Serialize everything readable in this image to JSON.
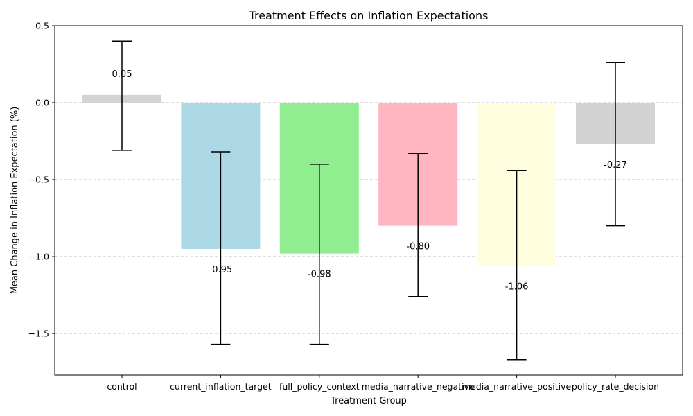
{
  "chart_data": {
    "type": "bar",
    "title": "Treatment Effects on Inflation Expectations",
    "xlabel": "Treatment Group",
    "ylabel": "Mean Change in Inflation Expectation (%)",
    "ylim": [
      -1.77,
      0.5
    ],
    "yticks": [
      0.5,
      0.0,
      -0.5,
      -1.0,
      -1.5
    ],
    "ytick_labels": [
      "0.5",
      "0.0",
      "−0.5",
      "−1.0",
      "−1.5"
    ],
    "grid": "horizontal-dashed",
    "categories": [
      "control",
      "current_inflation_target",
      "full_policy_context",
      "media_narrative_negative",
      "media_narrative_positive",
      "policy_rate_decision"
    ],
    "values": [
      0.05,
      -0.95,
      -0.98,
      -0.8,
      -1.06,
      -0.27
    ],
    "value_labels": [
      "0.05",
      "-0.95",
      "-0.98",
      "-0.80",
      "-1.06",
      "-0.27"
    ],
    "error_low": [
      -0.31,
      -1.57,
      -1.57,
      -1.26,
      -1.67,
      -0.8
    ],
    "error_high": [
      0.4,
      -0.32,
      -0.4,
      -0.33,
      -0.44,
      0.26
    ],
    "colors": [
      "#d3d3d3",
      "#add8e6",
      "#90ee90",
      "#ffb6c1",
      "#ffffe0",
      "#d3d3d3"
    ]
  }
}
